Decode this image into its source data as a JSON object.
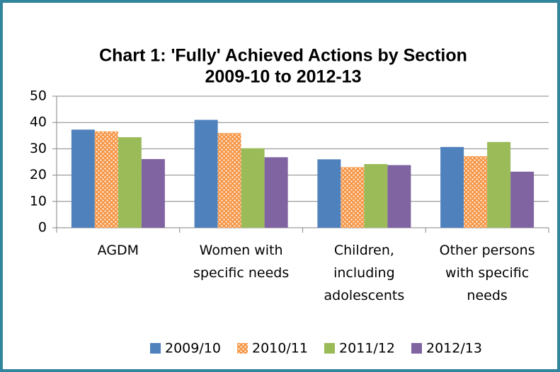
{
  "chart_data": {
    "type": "bar",
    "title": "Chart 1: 'Fully' Achieved Actions by Section",
    "subtitle": "2009-10 to 2012-13",
    "categories": [
      "AGDM",
      "Women with specific needs",
      "Children, including adolescents",
      "Other persons with specific needs"
    ],
    "series": [
      {
        "name": "2009/10",
        "color": "#4f81bd",
        "values": [
          37.3,
          41,
          26,
          30.7
        ]
      },
      {
        "name": "2010/11",
        "color": "#f79646",
        "pattern": "dots",
        "values": [
          36.6,
          36,
          23,
          27.2
        ]
      },
      {
        "name": "2011/12",
        "color": "#9bbb59",
        "values": [
          34.4,
          30.2,
          24.2,
          32.6
        ]
      },
      {
        "name": "2012/13",
        "color": "#8064a2",
        "values": [
          26.1,
          26.8,
          23.8,
          21.3
        ]
      }
    ],
    "ylim": [
      0,
      50
    ],
    "yticks": [
      0,
      10,
      20,
      30,
      40,
      50
    ],
    "grid": true,
    "legend": "bottom"
  }
}
